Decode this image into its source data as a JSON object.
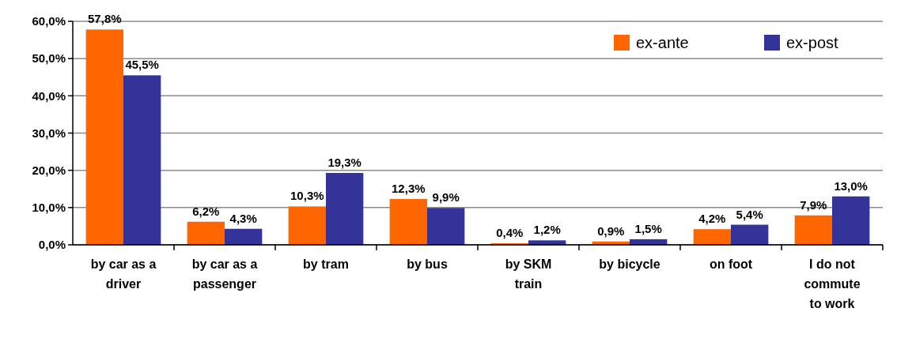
{
  "chart_data": {
    "type": "bar",
    "categories": [
      "by car as a driver",
      "by car as a passenger",
      "by tram",
      "by bus",
      "by SKM train",
      "by bicycle",
      "on foot",
      "I do not commute to work"
    ],
    "series": [
      {
        "name": "ex-ante",
        "color": "#ff6600",
        "values": [
          57.8,
          6.2,
          10.3,
          12.3,
          0.4,
          0.9,
          4.2,
          7.9
        ],
        "value_labels": [
          "57,8%",
          "6,2%",
          "10,3%",
          "12,3%",
          "0,4%",
          "0,9%",
          "4,2%",
          "7,9%"
        ]
      },
      {
        "name": "ex-post",
        "color": "#333399",
        "values": [
          45.5,
          4.3,
          19.3,
          9.9,
          1.2,
          1.5,
          5.4,
          13.0
        ],
        "value_labels": [
          "45,5%",
          "4,3%",
          "19,3%",
          "9,9%",
          "1,2%",
          "1,5%",
          "5,4%",
          "13,0%"
        ]
      }
    ],
    "ylim": [
      0,
      60
    ],
    "yticks": [
      {
        "value": 0,
        "label": "0,0%"
      },
      {
        "value": 10,
        "label": "10,0%"
      },
      {
        "value": 20,
        "label": "20,0%"
      },
      {
        "value": 30,
        "label": "30,0%"
      },
      {
        "value": 40,
        "label": "40,0%"
      },
      {
        "value": 50,
        "label": "50,0%"
      },
      {
        "value": 60,
        "label": "60,0%"
      }
    ],
    "grid": "y",
    "legend": "top right"
  }
}
